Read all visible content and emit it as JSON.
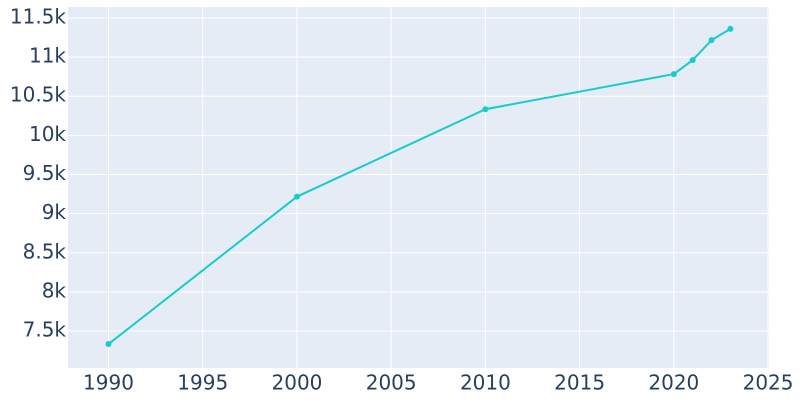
{
  "chart_data": {
    "type": "line",
    "x": [
      1990,
      2000,
      2010,
      2020,
      2021,
      2022,
      2023
    ],
    "series": [
      {
        "color": "#17cccc",
        "values": [
          7334,
          9217,
          10334,
          10783,
          10962,
          11217,
          11360
        ]
      }
    ],
    "xlim": [
      1987.85,
      2025.05
    ],
    "xticks": [
      1990,
      1995,
      2000,
      2005,
      2010,
      2015,
      2020,
      2025
    ],
    "ylim": [
      7028,
      11640
    ],
    "yticks": [
      {
        "value": 7500,
        "label": "7.5k"
      },
      {
        "value": 8000,
        "label": "8k"
      },
      {
        "value": 8500,
        "label": "8.5k"
      },
      {
        "value": 9000,
        "label": "9k"
      },
      {
        "value": 9500,
        "label": "9.5k"
      },
      {
        "value": 10000,
        "label": "10k"
      },
      {
        "value": 10500,
        "label": "10.5k"
      },
      {
        "value": 11000,
        "label": "11k"
      },
      {
        "value": 11500,
        "label": "11.5k"
      }
    ],
    "grid": true
  }
}
